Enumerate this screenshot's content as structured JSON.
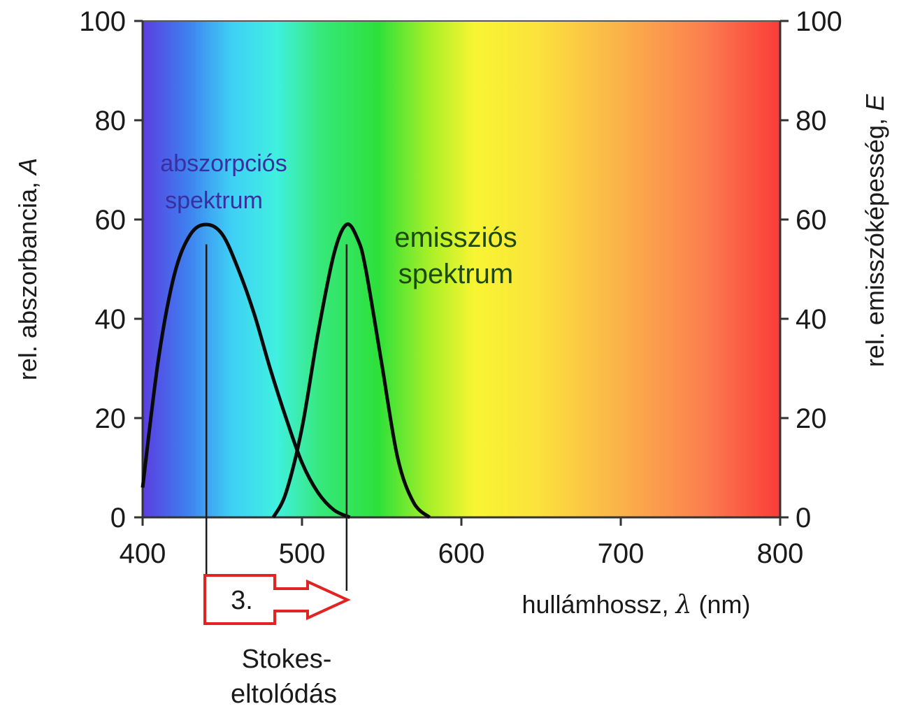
{
  "chart_data": {
    "type": "line",
    "x_range": [
      400,
      800
    ],
    "y_left_range": [
      0,
      100
    ],
    "y_right_range": [
      0,
      100
    ],
    "x_ticks": [
      "400",
      "500",
      "600",
      "700",
      "800"
    ],
    "y_left_ticks": [
      "0",
      "20",
      "40",
      "60",
      "80",
      "100"
    ],
    "y_right_ticks": [
      "0",
      "20",
      "40",
      "60",
      "80",
      "100"
    ],
    "xlabel_prefix": "hullámhossz,",
    "xlabel_symbol": "λ",
    "xlabel_unit": "(nm)",
    "ylabel_left_text": "rel. abszorbancia,",
    "ylabel_left_symbol": "A",
    "ylabel_right_text": "rel. emisszóképesség,",
    "ylabel_right_symbol": "E",
    "background": "visible spectrum gradient (violet to red)",
    "grid": false,
    "series": [
      {
        "name": "abszorpciós spektrum",
        "color": "#0a0a0a",
        "x": [
          400,
          410,
          420,
          430,
          440,
          450,
          460,
          470,
          480,
          490,
          500,
          510,
          520,
          530
        ],
        "y": [
          6,
          32,
          49,
          57,
          59,
          57,
          50,
          41,
          30,
          20,
          11,
          5,
          1.5,
          0
        ]
      },
      {
        "name": "emissziós spektrum",
        "color": "#0a0a0a",
        "x": [
          482,
          490,
          500,
          510,
          520,
          528,
          535,
          540,
          550,
          560,
          570,
          580
        ],
        "y": [
          0,
          5,
          18,
          37,
          53,
          59,
          56,
          50,
          31,
          12,
          3,
          0
        ]
      }
    ],
    "annotations": {
      "absorption_label_line1": "abszorpciós",
      "absorption_label_line2": "spektrum",
      "emission_label_line1": "emissziós",
      "emission_label_line2": "spektrum",
      "absorption_peak_x": 440,
      "emission_peak_x": 528,
      "stokes_number": "3.",
      "stokes_line1": "Stokes-",
      "stokes_line2": "eltolódás"
    },
    "colors": {
      "absorption_label": "#3a2fa0",
      "emission_label": "#1d4a0c",
      "stokes_arrow": "#e02424"
    }
  }
}
